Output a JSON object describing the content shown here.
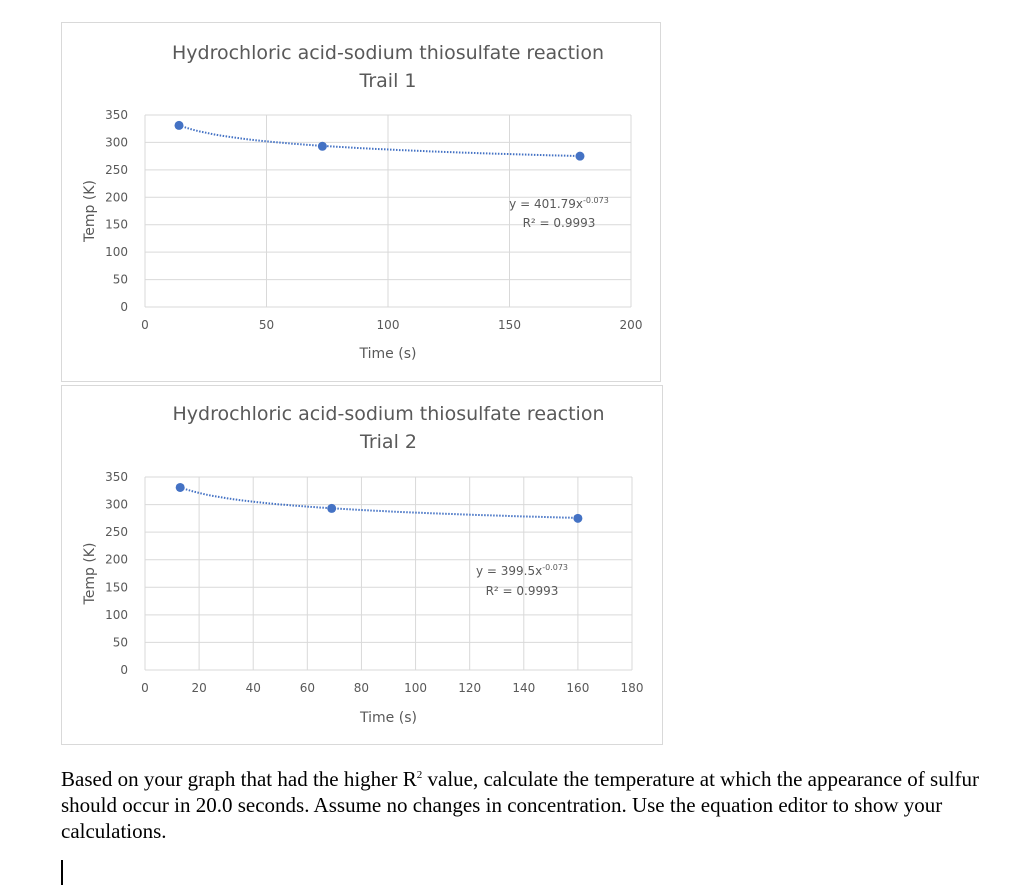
{
  "charts": [
    {
      "title": "Hydrochloric acid-sodium thiosulfate reaction",
      "subtitle": "Trail 1",
      "xlabel": "Time (s)",
      "ylabel": "Temp (K)",
      "eq_prefix": "y = 401.79x",
      "eq_exp": "-0.073",
      "r2": "R² = 0.9993"
    },
    {
      "title": "Hydrochloric acid-sodium thiosulfate reaction",
      "subtitle": "Trial 2",
      "xlabel": "Time (s)",
      "ylabel": "Temp (K)",
      "eq_prefix": "y = 399.5x",
      "eq_exp": "-0.073",
      "r2": "R² = 0.9993"
    }
  ],
  "chart_data": [
    {
      "type": "scatter",
      "title": "Hydrochloric acid-sodium thiosulfate reaction",
      "subtitle": "Trail 1",
      "xlabel": "Time (s)",
      "ylabel": "Temp (K)",
      "xlim": [
        0,
        200
      ],
      "ylim": [
        0,
        350
      ],
      "xticks": [
        0,
        50,
        100,
        150,
        200
      ],
      "yticks": [
        0,
        50,
        100,
        150,
        200,
        250,
        300,
        350
      ],
      "grid": true,
      "x": [
        14,
        73,
        179
      ],
      "y": [
        331,
        293,
        275
      ],
      "trendline": {
        "type": "power",
        "a": 401.79,
        "b": -0.073,
        "equation": "y = 401.79x-0.073",
        "r2": "R² = 0.9993"
      },
      "marker_color": "#4472c4"
    },
    {
      "type": "scatter",
      "title": "Hydrochloric acid-sodium thiosulfate reaction",
      "subtitle": "Trial 2",
      "xlabel": "Time (s)",
      "ylabel": "Temp (K)",
      "xlim": [
        0,
        180
      ],
      "ylim": [
        0,
        350
      ],
      "xticks": [
        0,
        20,
        40,
        60,
        80,
        100,
        120,
        140,
        160,
        180
      ],
      "yticks": [
        0,
        50,
        100,
        150,
        200,
        250,
        300,
        350
      ],
      "grid": true,
      "x": [
        13,
        69,
        160
      ],
      "y": [
        331,
        293,
        275
      ],
      "trendline": {
        "type": "power",
        "a": 399.5,
        "b": -0.073,
        "equation": "y = 399.5x-0.073",
        "r2": "R² = 0.9993"
      },
      "marker_color": "#4472c4"
    }
  ],
  "question": {
    "part1": "Based on your graph that had the higher R",
    "sup": "2",
    "part2": " value, calculate the temperature at which the appearance of sulfur should occur in 20.0 seconds. Assume no changes in concentration. Use the equation editor to show your calculations."
  },
  "colors": {
    "marker": "#4472c4",
    "grid": "#d9d9d9",
    "text": "#595959"
  }
}
